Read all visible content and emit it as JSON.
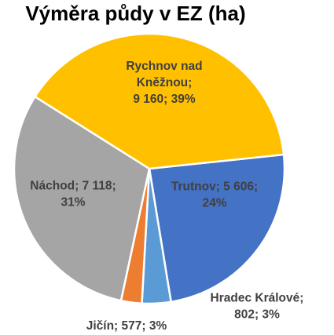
{
  "chart_data": {
    "type": "pie",
    "title": "Výměra půdy v EZ (ha)",
    "slices": [
      {
        "label": "Trutnov",
        "value": 5606,
        "value_text": "5 606",
        "percent": "24%",
        "color": "#4472C4",
        "label_lines": [
          "Trutnov; 5 606;",
          "24%"
        ],
        "label_placement": "inside"
      },
      {
        "label": "Hradec Králové",
        "value": 802,
        "value_text": "802",
        "percent": "3%",
        "color": "#5B9BD5",
        "label_lines": [
          "Hradec Králové;",
          "802; 3%"
        ],
        "label_placement": "outside"
      },
      {
        "label": "Jičín",
        "value": 577,
        "value_text": "577",
        "percent": "3%",
        "color": "#ED7D31",
        "label_lines": [
          "Jičín; 577; 3%"
        ],
        "label_placement": "outside"
      },
      {
        "label": "Náchod",
        "value": 7118,
        "value_text": "7 118",
        "percent": "31%",
        "color": "#A5A5A5",
        "label_lines": [
          "Náchod; 7 118;",
          "31%"
        ],
        "label_placement": "inside"
      },
      {
        "label": "Rychnov nad Kněžnou",
        "value": 9160,
        "value_text": "9 160",
        "percent": "39%",
        "color": "#FFC000",
        "label_lines": [
          "Rychnov nad",
          "Kněžnou;",
          "9 160; 39%"
        ],
        "label_placement": "inside"
      }
    ],
    "legend": "none"
  }
}
